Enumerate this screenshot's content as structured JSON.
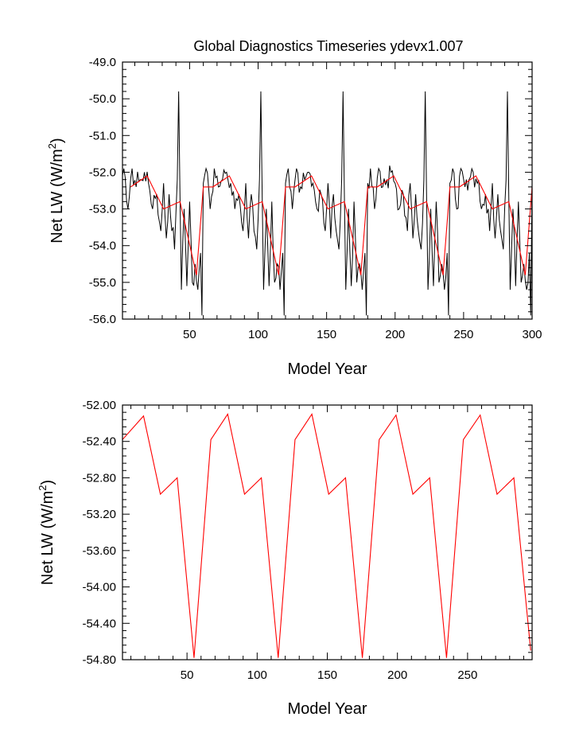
{
  "figure_title": "Global Diagnostics Timeseries ydevx1.007",
  "chart_data": [
    {
      "type": "line",
      "title": "Global Diagnostics Timeseries ydevx1.007",
      "xlabel": "Model Year",
      "ylabel": "Net LW (W/m²)",
      "ylabel_parts": {
        "main": "Net LW (W/m",
        "sup": "2",
        "end": ")"
      },
      "xlim": [
        1,
        300
      ],
      "ylim": [
        -56.0,
        -49.0
      ],
      "xticks": [
        50,
        100,
        150,
        200,
        250,
        300
      ],
      "xtick_labels": [
        "50",
        "100",
        "150",
        "200",
        "250",
        "300"
      ],
      "yticks": [
        -56.0,
        -55.0,
        -54.0,
        -53.0,
        -52.0,
        -51.0,
        -50.0,
        -49.0
      ],
      "ytick_labels": [
        "-56.0",
        "-55.0",
        "-54.0",
        "-53.0",
        "-52.0",
        "-51.0",
        "-50.0",
        "-49.0"
      ],
      "grid": false,
      "series": [
        {
          "color": "#000000",
          "noisy": true,
          "period": 60,
          "base_x": [
            0,
            2,
            5,
            8,
            11,
            14,
            17,
            20,
            23,
            26,
            29,
            31,
            33,
            35,
            37,
            39,
            41,
            42,
            43,
            44,
            46,
            48,
            50,
            52,
            54,
            56,
            58,
            59,
            60
          ],
          "base_y": [
            -52.3,
            -51.9,
            -53.0,
            -51.9,
            -52.4,
            -52.2,
            -52.0,
            -52.3,
            -53.0,
            -52.6,
            -53.6,
            -52.3,
            -53.8,
            -52.6,
            -53.6,
            -54.1,
            -52.2,
            -49.8,
            -52.7,
            -55.2,
            -53.0,
            -55.1,
            -52.8,
            -55.0,
            -54.5,
            -55.2,
            -54.2,
            -55.9,
            -52.3
          ]
        },
        {
          "color": "#ff0000",
          "noisy": false,
          "period": 60,
          "base_x": [
            0,
            7,
            19,
            31,
            43,
            55,
            60
          ],
          "base_y": [
            -52.4,
            -52.4,
            -52.1,
            -53.0,
            -52.8,
            -54.8,
            -52.4
          ]
        }
      ]
    },
    {
      "type": "line",
      "xlabel": "Model Year",
      "ylabel": "Net LW (W/m²)",
      "ylabel_parts": {
        "main": "Net LW (W/m",
        "sup": "2",
        "end": ")"
      },
      "xlim": [
        4,
        296
      ],
      "ylim": [
        -54.8,
        -52.0
      ],
      "xticks": [
        50,
        100,
        150,
        200,
        250
      ],
      "xtick_labels": [
        "50",
        "100",
        "150",
        "200",
        "250"
      ],
      "yticks": [
        -54.8,
        -54.4,
        -54.0,
        -53.6,
        -53.2,
        -52.8,
        -52.4,
        -52.0
      ],
      "ytick_labels": [
        "-54.80",
        "-54.40",
        "-54.00",
        "-53.60",
        "-53.20",
        "-52.80",
        "-52.40",
        "-52.00"
      ],
      "grid": false,
      "series": [
        {
          "color": "#ff0000",
          "x": [
            4,
            19,
            31,
            43,
            55,
            67,
            79,
            91,
            103,
            115,
            127,
            139,
            151,
            163,
            175,
            187,
            199,
            211,
            223,
            235,
            247,
            259,
            271,
            283,
            295
          ],
          "y": [
            -52.38,
            -52.12,
            -52.98,
            -52.8,
            -54.78,
            -52.38,
            -52.1,
            -52.98,
            -52.8,
            -54.78,
            -52.38,
            -52.1,
            -52.98,
            -52.8,
            -54.78,
            -52.38,
            -52.11,
            -52.98,
            -52.8,
            -54.78,
            -52.38,
            -52.11,
            -52.98,
            -52.8,
            -54.7
          ]
        }
      ]
    }
  ]
}
